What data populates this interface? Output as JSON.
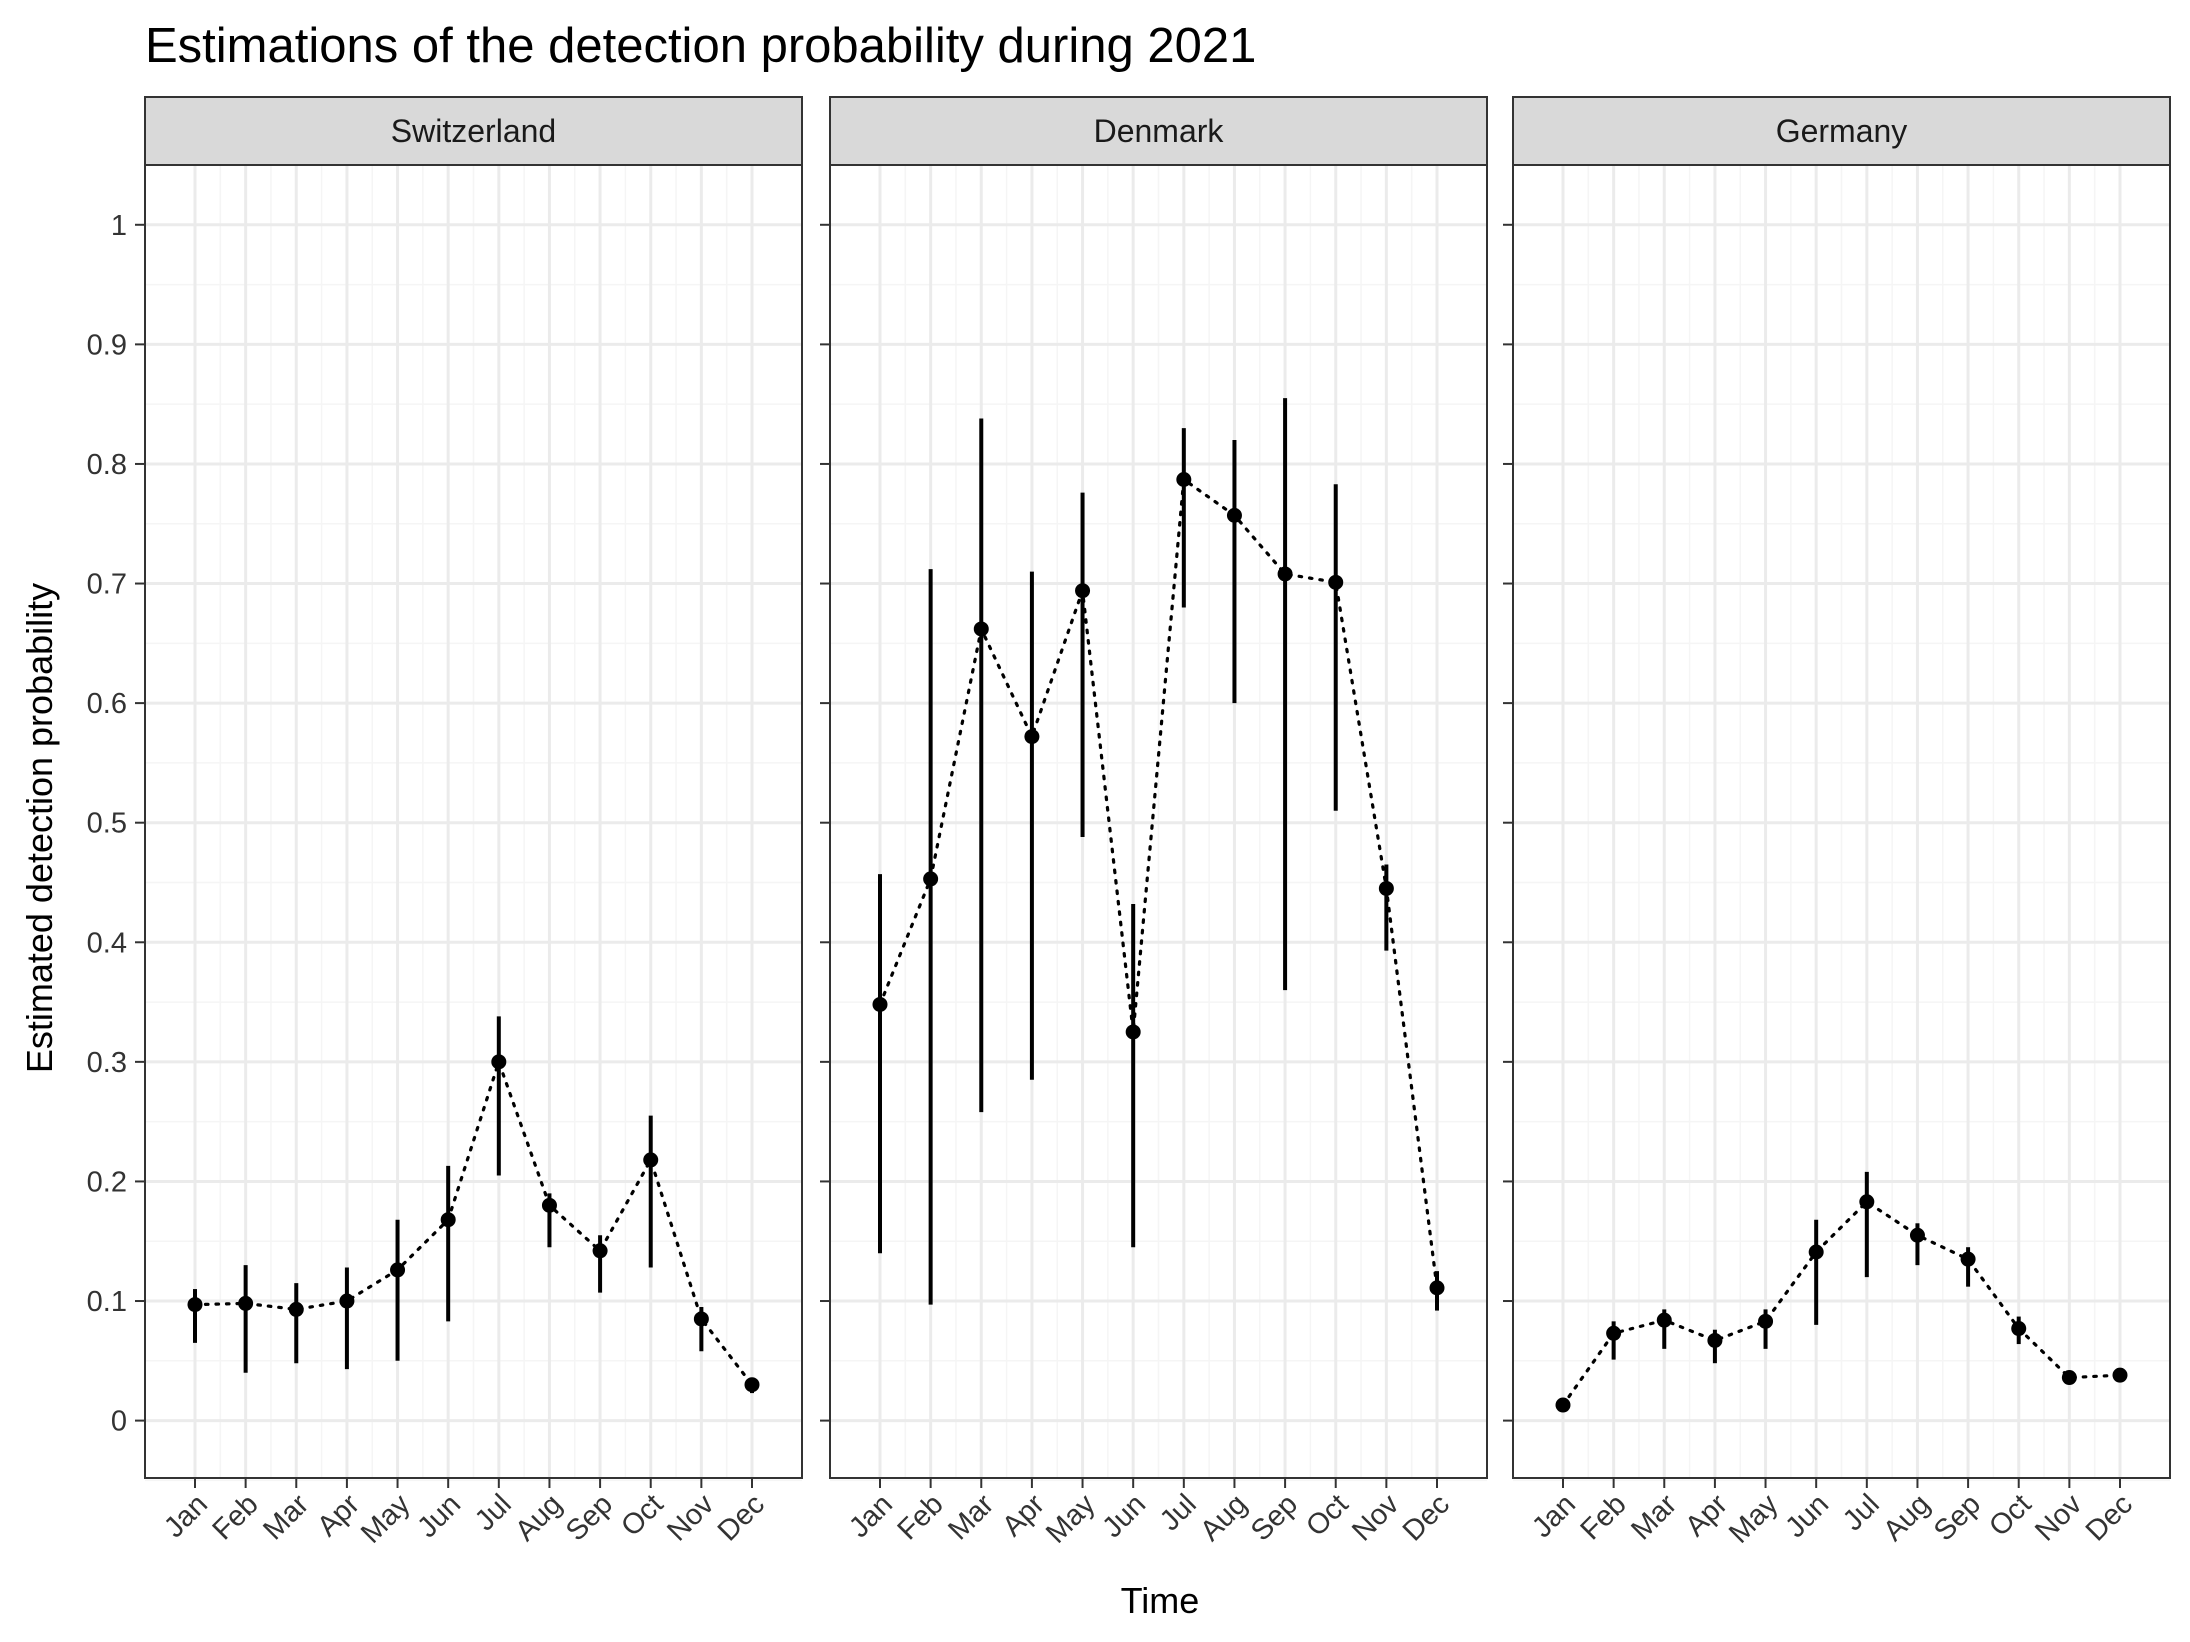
{
  "chart_data": {
    "type": "line",
    "title": "Estimations of the detection probability during 2021",
    "xlabel": "Time",
    "ylabel": "Estimated detection probability",
    "ylim": [
      -0.048,
      1.05
    ],
    "y_ticks": [
      "0",
      "0.1",
      "0.2",
      "0.3",
      "0.4",
      "0.5",
      "0.6",
      "0.7",
      "0.8",
      "0.9",
      "1"
    ],
    "categories": [
      "Jan",
      "Feb",
      "Mar",
      "Apr",
      "May",
      "Jun",
      "Jul",
      "Aug",
      "Sep",
      "Oct",
      "Nov",
      "Dec"
    ],
    "grid": true,
    "legend": "none",
    "colors": {
      "point": "#000000",
      "panel_border": "#333333",
      "strip_fill": "#d9d9d9",
      "grid_major": "#ebebeb",
      "grid_minor": "#f5f5f5"
    },
    "panels": [
      {
        "name": "Switzerland",
        "values": [
          0.097,
          0.098,
          0.093,
          0.1,
          0.126,
          0.168,
          0.3,
          0.18,
          0.142,
          0.218,
          0.085,
          0.03
        ],
        "lower": [
          0.065,
          0.04,
          0.048,
          0.043,
          0.05,
          0.083,
          0.205,
          0.145,
          0.107,
          0.128,
          0.058,
          0.023
        ],
        "upper": [
          0.11,
          0.13,
          0.115,
          0.128,
          0.168,
          0.213,
          0.338,
          0.19,
          0.155,
          0.255,
          0.095,
          0.035
        ]
      },
      {
        "name": "Denmark",
        "values": [
          0.348,
          0.453,
          0.662,
          0.572,
          0.694,
          0.325,
          0.787,
          0.757,
          0.708,
          0.701,
          0.445,
          0.111
        ],
        "lower": [
          0.14,
          0.097,
          0.258,
          0.285,
          0.488,
          0.145,
          0.68,
          0.6,
          0.36,
          0.51,
          0.393,
          0.092
        ],
        "upper": [
          0.457,
          0.712,
          0.838,
          0.71,
          0.776,
          0.432,
          0.83,
          0.82,
          0.855,
          0.783,
          0.465,
          0.125
        ]
      },
      {
        "name": "Germany",
        "values": [
          0.013,
          0.073,
          0.084,
          0.067,
          0.083,
          0.141,
          0.183,
          0.155,
          0.135,
          0.077,
          0.036,
          0.038
        ],
        "lower": [
          0.01,
          0.051,
          0.06,
          0.048,
          0.06,
          0.08,
          0.12,
          0.13,
          0.112,
          0.064,
          0.033,
          0.035
        ],
        "upper": [
          0.016,
          0.083,
          0.093,
          0.076,
          0.093,
          0.168,
          0.208,
          0.165,
          0.145,
          0.087,
          0.039,
          0.041
        ]
      }
    ]
  }
}
